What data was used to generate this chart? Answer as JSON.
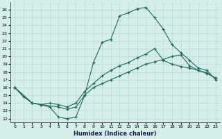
{
  "xlabel": "Humidex (Indice chaleur)",
  "xlim_min": -0.5,
  "xlim_max": 23.5,
  "ylim_min": 11.5,
  "ylim_max": 27.0,
  "xticks": [
    0,
    1,
    2,
    3,
    4,
    5,
    6,
    7,
    8,
    9,
    10,
    11,
    12,
    13,
    14,
    15,
    16,
    17,
    18,
    19,
    20,
    21,
    22,
    23
  ],
  "yticks": [
    12,
    13,
    14,
    15,
    16,
    17,
    18,
    19,
    20,
    21,
    22,
    23,
    24,
    25,
    26
  ],
  "bg_color": "#d6eeea",
  "grid_color": "#b8d8d4",
  "line_color": "#1a6b5a",
  "line1_x": [
    0,
    1,
    2,
    3,
    4,
    5,
    6,
    7,
    8,
    9,
    10,
    11,
    12,
    13,
    14,
    15,
    16,
    17,
    18,
    19,
    20,
    21,
    22,
    23
  ],
  "line1_y": [
    16.0,
    14.8,
    14.0,
    13.8,
    13.5,
    12.2,
    12.0,
    12.2,
    15.0,
    19.2,
    21.8,
    22.2,
    25.2,
    25.6,
    26.1,
    26.3,
    25.0,
    23.5,
    21.5,
    20.5,
    19.5,
    18.5,
    18.2,
    17.0
  ],
  "line2_x": [
    0,
    2,
    3,
    4,
    5,
    6,
    7,
    8,
    9,
    10,
    11,
    12,
    13,
    14,
    15,
    16,
    17,
    18,
    19,
    20,
    21,
    22,
    23
  ],
  "line2_y": [
    16.0,
    14.0,
    13.8,
    14.0,
    13.8,
    13.5,
    14.0,
    15.5,
    16.5,
    17.5,
    18.2,
    18.8,
    19.2,
    19.8,
    20.3,
    21.0,
    19.5,
    19.0,
    18.7,
    18.5,
    18.2,
    17.8,
    17.2
  ],
  "line3_x": [
    0,
    2,
    3,
    5,
    6,
    7,
    8,
    9,
    10,
    11,
    12,
    13,
    14,
    15,
    16,
    17,
    18,
    19,
    20,
    21,
    22,
    23
  ],
  "line3_y": [
    16.0,
    14.0,
    13.8,
    13.5,
    13.2,
    13.5,
    15.0,
    16.0,
    16.5,
    17.0,
    17.5,
    18.0,
    18.5,
    19.0,
    19.3,
    19.6,
    20.0,
    20.2,
    18.8,
    18.2,
    17.9,
    17.2
  ]
}
